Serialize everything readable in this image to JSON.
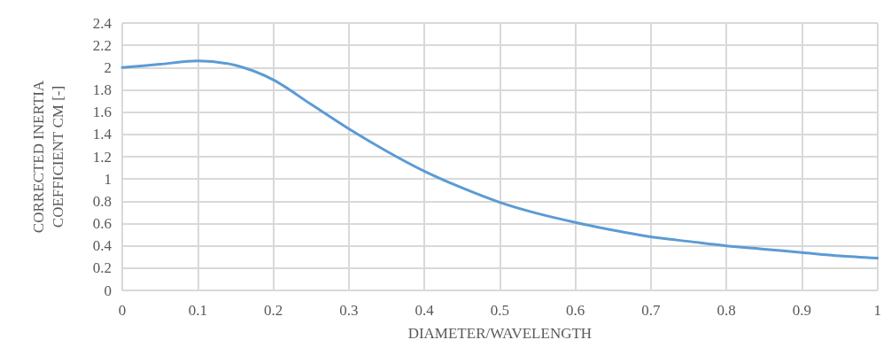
{
  "chart_data": {
    "type": "line",
    "xlabel": "DIAMETER/WAVELENGTH",
    "ylabel": "CORRECTED INERTIA\nCOEFFICIENT CM [-]",
    "x": [
      0,
      0.05,
      0.1,
      0.15,
      0.2,
      0.25,
      0.3,
      0.35,
      0.4,
      0.45,
      0.5,
      0.55,
      0.6,
      0.65,
      0.7,
      0.75,
      0.8,
      0.85,
      0.9,
      0.95,
      1
    ],
    "series": [
      {
        "color": "#5b9bd5",
        "values": [
          2.0,
          2.03,
          2.06,
          2.02,
          1.89,
          1.67,
          1.45,
          1.25,
          1.07,
          0.92,
          0.79,
          0.69,
          0.61,
          0.54,
          0.48,
          0.44,
          0.4,
          0.37,
          0.34,
          0.31,
          0.29
        ]
      }
    ],
    "xlim": [
      0,
      1
    ],
    "xticks": [
      0,
      0.1,
      0.2,
      0.3,
      0.4,
      0.5,
      0.6,
      0.7,
      0.8,
      0.9,
      1
    ],
    "ylim": [
      0,
      2.4
    ],
    "yticks": [
      0,
      0.2,
      0.4,
      0.6,
      0.8,
      1,
      1.2,
      1.4,
      1.6,
      1.8,
      2,
      2.2,
      2.4
    ],
    "grid": true,
    "marker": "none",
    "line_style": "solid"
  }
}
